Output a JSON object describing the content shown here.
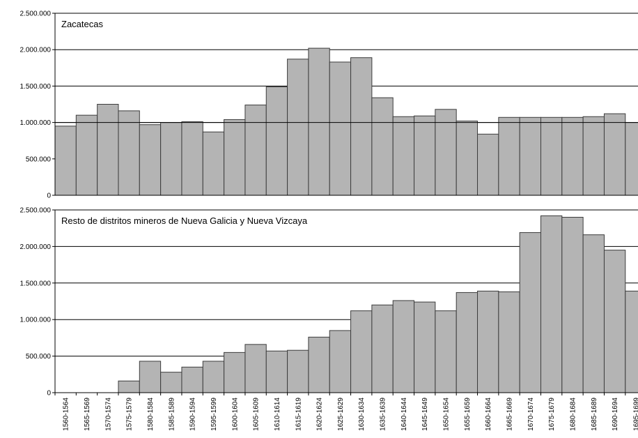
{
  "chart_data": [
    {
      "type": "bar",
      "title": "Zacatecas",
      "ylim": [
        0,
        2500000
      ],
      "yticks": [
        {
          "value": 0,
          "label": "0"
        },
        {
          "value": 500000,
          "label": "500.000"
        },
        {
          "value": 1000000,
          "label": "1.000.000"
        },
        {
          "value": 1500000,
          "label": "1.500.000"
        },
        {
          "value": 2000000,
          "label": "2.000.000"
        },
        {
          "value": 2500000,
          "label": "2.500.000"
        }
      ],
      "grid": true,
      "reference_line": 1000000,
      "categories": [
        "1560-1564",
        "1565-1569",
        "1570-1574",
        "1575-1579",
        "1580-1584",
        "1585-1589",
        "1590-1594",
        "1595-1599",
        "1600-1604",
        "1605-1609",
        "1610-1614",
        "1615-1619",
        "1620-1624",
        "1625-1629",
        "1630-1634",
        "1635-1639",
        "1640-1644",
        "1645-1649",
        "1650-1654",
        "1655-1659",
        "1660-1664",
        "1665-1669",
        "1670-1674",
        "1675-1679",
        "1680-1684",
        "1685-1689",
        "1690-1694",
        "1695-1699"
      ],
      "values": [
        950000,
        1100000,
        1250000,
        1160000,
        970000,
        1000000,
        1010000,
        870000,
        1040000,
        1240000,
        1490000,
        1870000,
        2020000,
        1830000,
        1890000,
        1340000,
        1080000,
        1090000,
        1180000,
        1020000,
        840000,
        1070000,
        1070000,
        1070000,
        1070000,
        1080000,
        1120000,
        1000000
      ]
    },
    {
      "type": "bar",
      "title": "Resto de distritos mineros de Nueva Galicia y Nueva Vizcaya",
      "ylim": [
        0,
        2500000
      ],
      "yticks": [
        {
          "value": 0,
          "label": "0"
        },
        {
          "value": 500000,
          "label": "500.000"
        },
        {
          "value": 1000000,
          "label": "1.000.000"
        },
        {
          "value": 1500000,
          "label": "1.500.000"
        },
        {
          "value": 2000000,
          "label": "2.000.000"
        },
        {
          "value": 2500000,
          "label": "2.500.000"
        }
      ],
      "grid": true,
      "categories": [
        "1560-1564",
        "1565-1569",
        "1570-1574",
        "1575-1579",
        "1580-1584",
        "1585-1589",
        "1590-1594",
        "1595-1599",
        "1600-1604",
        "1605-1609",
        "1610-1614",
        "1615-1619",
        "1620-1624",
        "1625-1629",
        "1630-1634",
        "1635-1639",
        "1640-1644",
        "1645-1649",
        "1650-1654",
        "1655-1659",
        "1660-1664",
        "1665-1669",
        "1670-1674",
        "1675-1679",
        "1680-1684",
        "1685-1689",
        "1690-1694",
        "1695-1699"
      ],
      "values": [
        0,
        0,
        0,
        160000,
        430000,
        280000,
        350000,
        430000,
        550000,
        660000,
        570000,
        580000,
        760000,
        850000,
        1120000,
        1200000,
        1260000,
        1240000,
        1120000,
        1370000,
        1390000,
        1380000,
        2190000,
        2420000,
        2400000,
        2160000,
        1950000,
        1390000
      ]
    }
  ],
  "colors": {
    "bar_fill": "#b4b4b4",
    "bar_stroke": "#3c3c3c",
    "grid": "#000000",
    "text": "#000000"
  }
}
